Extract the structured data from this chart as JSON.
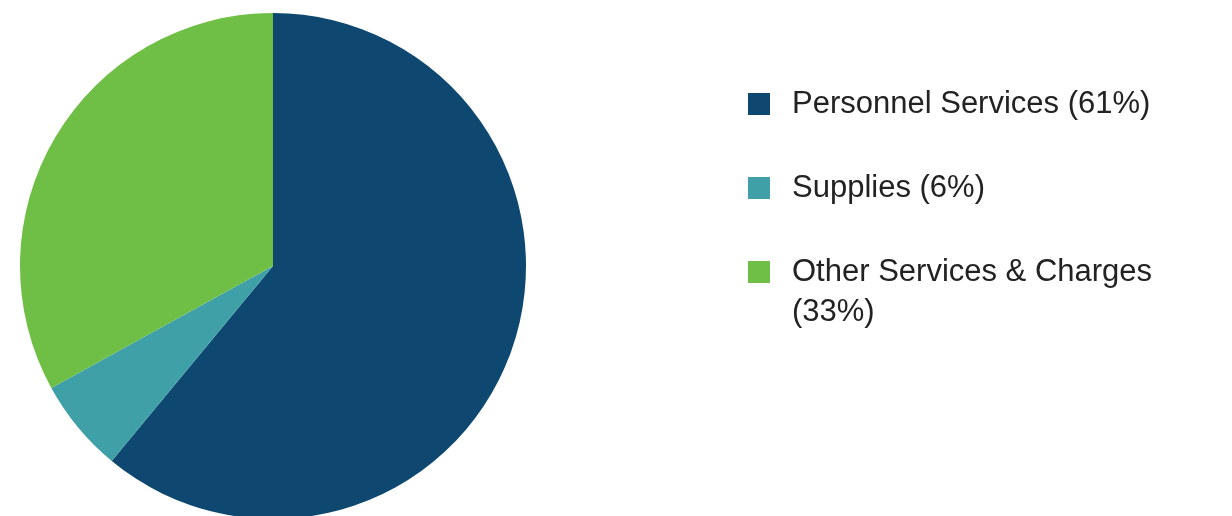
{
  "chart_data": {
    "type": "pie",
    "categories": [
      "Personnel Services (61%)",
      "Supplies (6%)",
      "Other Services & Charges (33%)"
    ],
    "values": [
      61,
      6,
      33
    ],
    "colors": [
      "#0e4870",
      "#40a0a8",
      "#6fbe46"
    ],
    "legend": "right"
  }
}
